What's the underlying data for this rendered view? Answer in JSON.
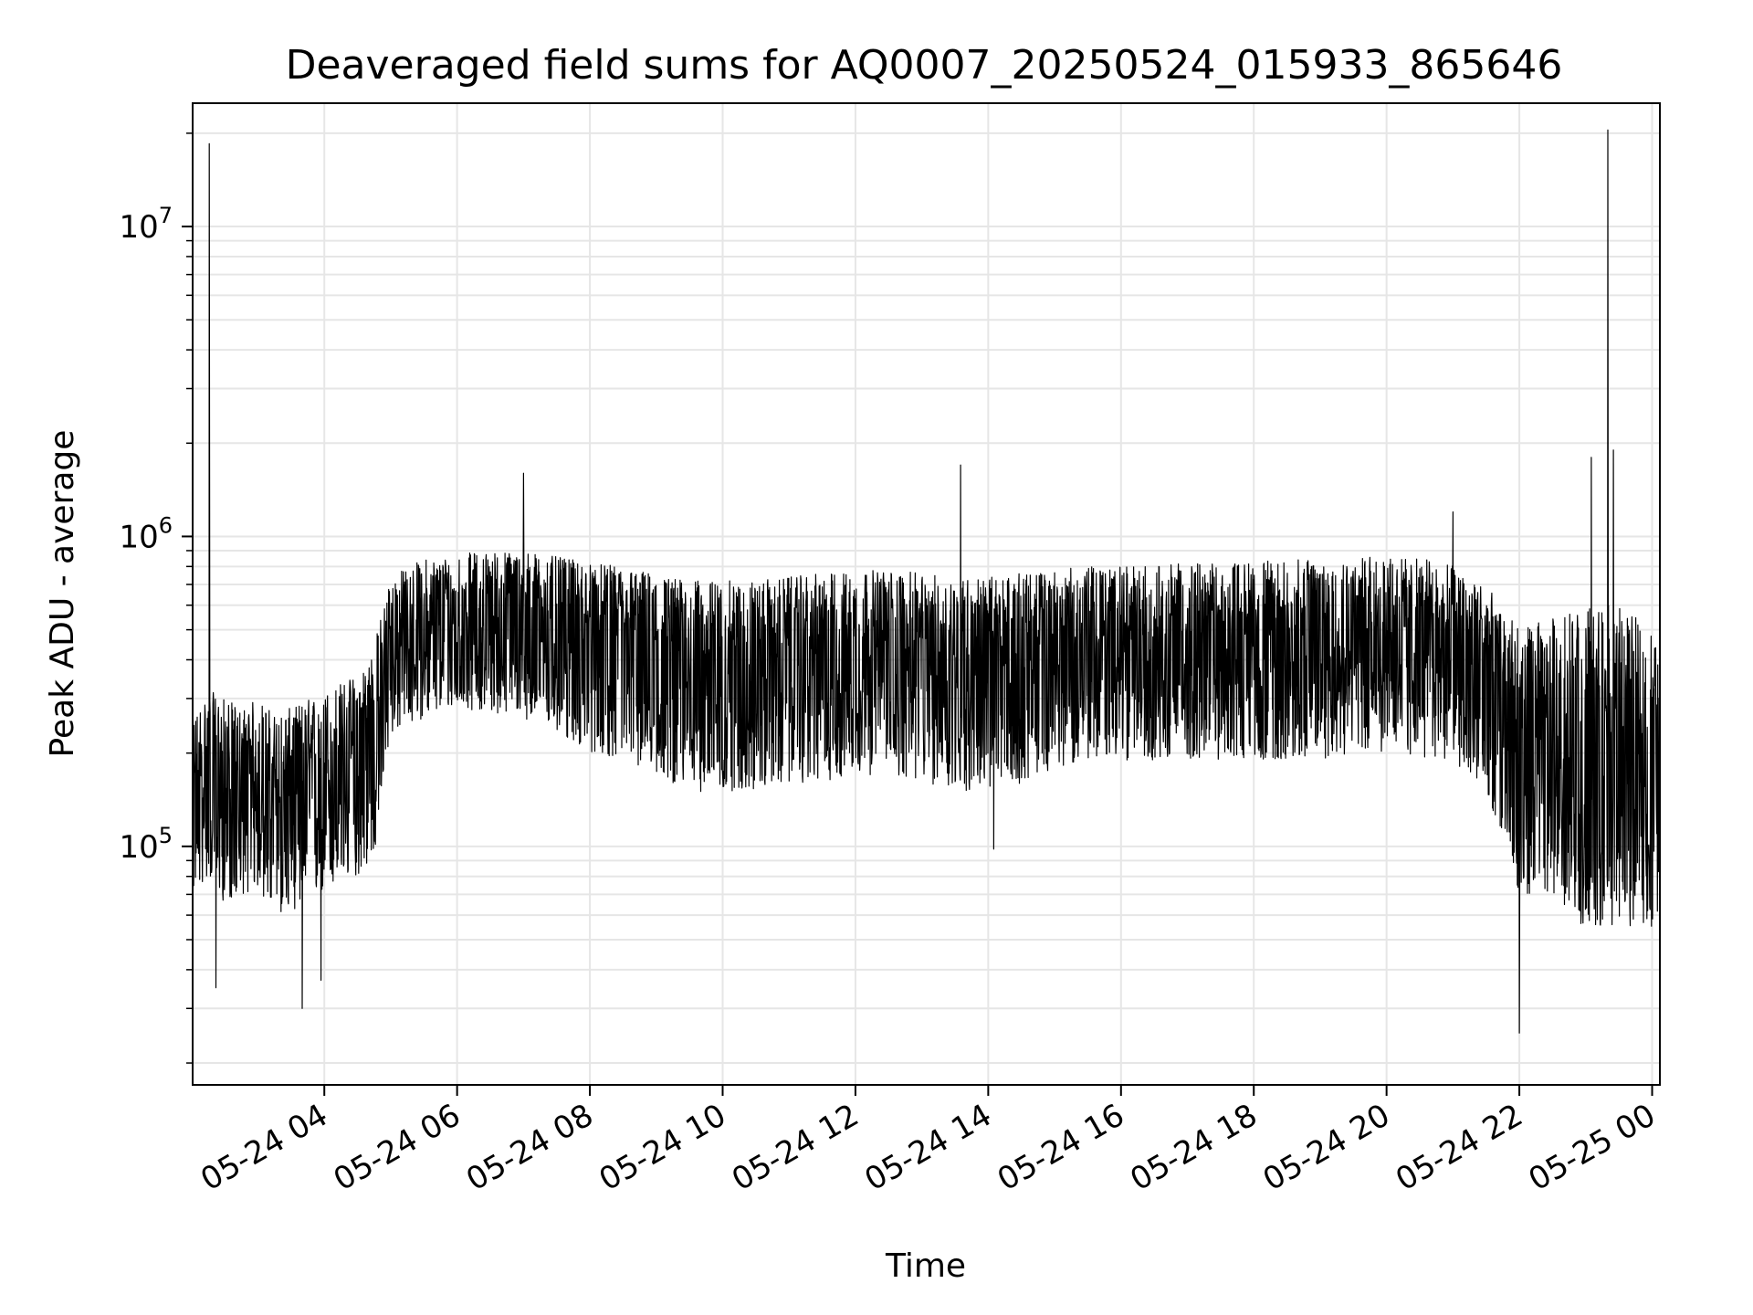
{
  "chart_data": {
    "type": "line",
    "title": "Deaveraged field sums for AQ0007_20250524_015933_865646",
    "xlabel": "Time",
    "ylabel": "Peak ADU - average",
    "yscale": "log",
    "ylim": [
      17000,
      25000000
    ],
    "xlim": [
      "2025-05-24 02:01",
      "2025-05-25 00:07"
    ],
    "x_ticks": [
      {
        "t": "2025-05-24 04:00",
        "label": "05-24 04"
      },
      {
        "t": "2025-05-24 06:00",
        "label": "05-24 06"
      },
      {
        "t": "2025-05-24 08:00",
        "label": "05-24 08"
      },
      {
        "t": "2025-05-24 10:00",
        "label": "05-24 10"
      },
      {
        "t": "2025-05-24 12:00",
        "label": "05-24 12"
      },
      {
        "t": "2025-05-24 14:00",
        "label": "05-24 14"
      },
      {
        "t": "2025-05-24 16:00",
        "label": "05-24 16"
      },
      {
        "t": "2025-05-24 18:00",
        "label": "05-24 18"
      },
      {
        "t": "2025-05-24 20:00",
        "label": "05-24 20"
      },
      {
        "t": "2025-05-24 22:00",
        "label": "05-24 22"
      },
      {
        "t": "2025-05-25 00:00",
        "label": "05-25 00"
      }
    ],
    "y_ticks": [
      {
        "value": 100000,
        "base": "10",
        "exp": "5"
      },
      {
        "value": 1000000,
        "base": "10",
        "exp": "6"
      },
      {
        "value": 10000000,
        "base": "10",
        "exp": "7"
      }
    ],
    "grid": true,
    "line_color": "#000000",
    "grid_color": "#e6e6e6",
    "series": [
      {
        "x": [
          "2025-05-24 02:01",
          "2025-05-24 02:10",
          "2025-05-24 02:15",
          "2025-05-24 02:30",
          "2025-05-24 02:45",
          "2025-05-24 03:00",
          "2025-05-24 03:15",
          "2025-05-24 03:30",
          "2025-05-24 03:45",
          "2025-05-24 04:00",
          "2025-05-24 04:15",
          "2025-05-24 04:30",
          "2025-05-24 04:45",
          "2025-05-24 05:00",
          "2025-05-24 05:30",
          "2025-05-24 06:00",
          "2025-05-24 06:30",
          "2025-05-24 07:00",
          "2025-05-24 07:30",
          "2025-05-24 08:00",
          "2025-05-24 08:30",
          "2025-05-24 09:00",
          "2025-05-24 09:30",
          "2025-05-24 10:00",
          "2025-05-24 10:30",
          "2025-05-24 11:00",
          "2025-05-24 11:30",
          "2025-05-24 12:00",
          "2025-05-24 12:30",
          "2025-05-24 13:00",
          "2025-05-24 13:30",
          "2025-05-24 14:00",
          "2025-05-24 14:30",
          "2025-05-24 15:00",
          "2025-05-24 15:30",
          "2025-05-24 16:00",
          "2025-05-24 16:30",
          "2025-05-24 17:00",
          "2025-05-24 17:30",
          "2025-05-24 18:00",
          "2025-05-24 18:30",
          "2025-05-24 19:00",
          "2025-05-24 19:30",
          "2025-05-24 20:00",
          "2025-05-24 20:30",
          "2025-05-24 21:00",
          "2025-05-24 21:30",
          "2025-05-24 22:00",
          "2025-05-24 22:30",
          "2025-05-24 23:00",
          "2025-05-24 23:30",
          "2025-05-25 00:00",
          "2025-05-25 00:07"
        ],
        "median": [
          140000,
          150000,
          160000,
          145000,
          140000,
          150000,
          135000,
          140000,
          150000,
          160000,
          170000,
          180000,
          230000,
          420000,
          480000,
          520000,
          520000,
          540000,
          520000,
          500000,
          470000,
          420000,
          390000,
          380000,
          380000,
          390000,
          400000,
          420000,
          420000,
          400000,
          390000,
          390000,
          400000,
          420000,
          430000,
          430000,
          440000,
          450000,
          450000,
          460000,
          460000,
          470000,
          480000,
          480000,
          470000,
          450000,
          380000,
          200000,
          190000,
          180000,
          180000,
          170000,
          170000
        ],
        "low": [
          70000,
          75000,
          80000,
          65000,
          70000,
          72000,
          60000,
          62000,
          65000,
          70000,
          75000,
          80000,
          90000,
          230000,
          260000,
          280000,
          270000,
          260000,
          230000,
          200000,
          190000,
          170000,
          150000,
          150000,
          150000,
          160000,
          160000,
          170000,
          170000,
          160000,
          150000,
          150000,
          160000,
          180000,
          190000,
          190000,
          190000,
          190000,
          190000,
          190000,
          190000,
          190000,
          200000,
          200000,
          190000,
          190000,
          150000,
          70000,
          65000,
          55000,
          55000,
          55000,
          55000
        ],
        "high": [
          260000,
          300000,
          320000,
          300000,
          280000,
          300000,
          270000,
          280000,
          300000,
          320000,
          340000,
          360000,
          450000,
          750000,
          850000,
          880000,
          900000,
          900000,
          860000,
          820000,
          800000,
          760000,
          720000,
          720000,
          720000,
          740000,
          760000,
          780000,
          780000,
          760000,
          740000,
          740000,
          760000,
          780000,
          800000,
          800000,
          810000,
          820000,
          820000,
          830000,
          840000,
          850000,
          860000,
          860000,
          850000,
          820000,
          700000,
          500000,
          550000,
          600000,
          600000,
          500000,
          500000
        ],
        "spikes": [
          {
            "x": "2025-05-24 02:16",
            "y": 18500000
          },
          {
            "x": "2025-05-24 02:22",
            "y": 35000
          },
          {
            "x": "2025-05-24 03:40",
            "y": 30000
          },
          {
            "x": "2025-05-24 03:57",
            "y": 37000
          },
          {
            "x": "2025-05-24 07:00",
            "y": 1600000
          },
          {
            "x": "2025-05-24 13:35",
            "y": 1700000
          },
          {
            "x": "2025-05-24 14:05",
            "y": 98000
          },
          {
            "x": "2025-05-24 21:00",
            "y": 1200000
          },
          {
            "x": "2025-05-24 22:00",
            "y": 25000
          },
          {
            "x": "2025-05-24 23:05",
            "y": 1800000
          },
          {
            "x": "2025-05-24 23:20",
            "y": 20500000
          },
          {
            "x": "2025-05-24 23:25",
            "y": 1900000
          }
        ]
      }
    ]
  }
}
